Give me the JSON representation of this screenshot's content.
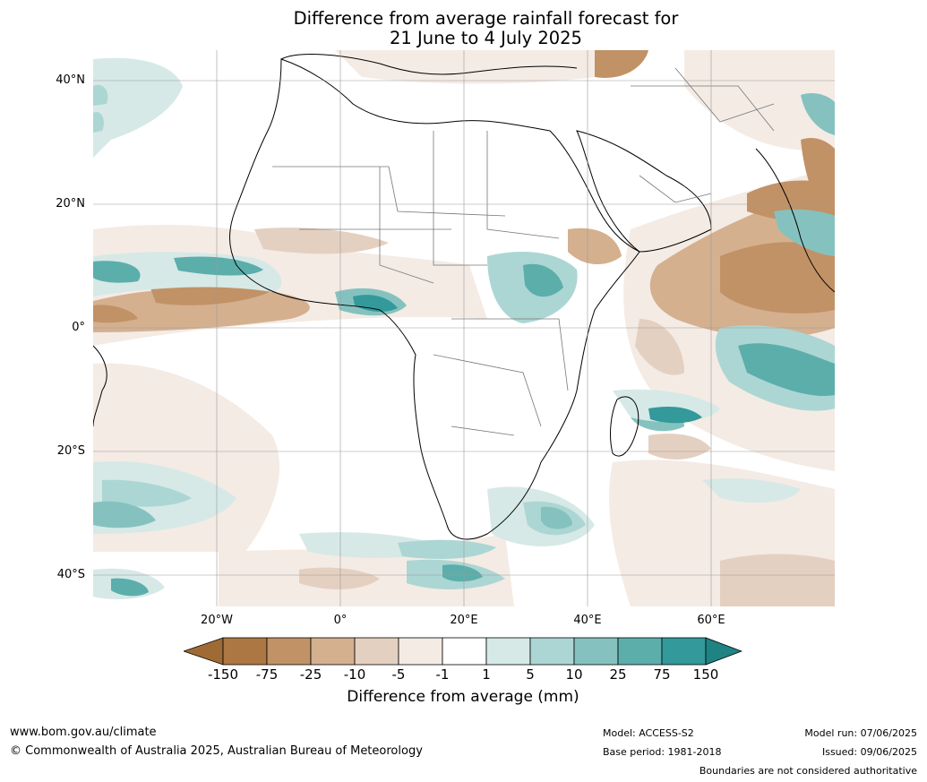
{
  "title": {
    "line1": "Difference from average rainfall forecast for",
    "line2": "21 June to 4 July 2025"
  },
  "map": {
    "lat_range": [
      -45,
      45
    ],
    "lon_range": [
      -40,
      80
    ],
    "lat_labels": [
      "40°N",
      "20°N",
      "0°",
      "20°S",
      "40°S"
    ],
    "lon_labels": [
      "20°W",
      "0°",
      "20°E",
      "40°E",
      "60°E"
    ],
    "gridlines": true
  },
  "colorbar": {
    "label": "Difference from average (mm)",
    "ticks": [
      "-150",
      "-75",
      "-25",
      "-10",
      "-5",
      "-1",
      "1",
      "5",
      "10",
      "25",
      "75",
      "150"
    ],
    "colors": [
      "#a06a35",
      "#ad7744",
      "#c19266",
      "#d4b08f",
      "#e4d0c0",
      "#f4ebe5",
      "#ffffff",
      "#d6e9e7",
      "#acd6d3",
      "#85c2bf",
      "#5caeab",
      "#33999b",
      "#1f8383"
    ]
  },
  "footer": {
    "website": "www.bom.gov.au/climate",
    "copyright": "© Commonwealth of Australia 2025, Australian Bureau of Meteorology",
    "model": "Model: ACCESS-S2",
    "base_period": "Base period: 1981-2018",
    "model_run": "Model run: 07/06/2025",
    "issued": "Issued: 09/06/2025",
    "boundaries": "Boundaries are not considered authoritative"
  }
}
